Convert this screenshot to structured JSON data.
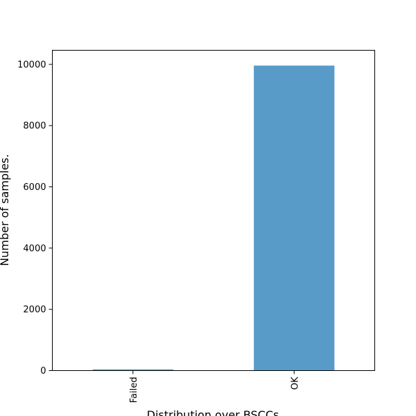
{
  "chart_data": {
    "type": "bar",
    "title": "",
    "xlabel": "Distribution over BSCCs",
    "ylabel": "Number of samples.",
    "categories": [
      "Failed",
      "OK"
    ],
    "values": [
      40,
      9960
    ],
    "ylim": [
      0,
      10460
    ],
    "yticks": [
      0,
      2000,
      4000,
      6000,
      8000,
      10000
    ],
    "ytick_labels": [
      "0",
      "2000",
      "4000",
      "6000",
      "8000",
      "10000"
    ],
    "grid": false,
    "bar_color": "#589BC8"
  }
}
